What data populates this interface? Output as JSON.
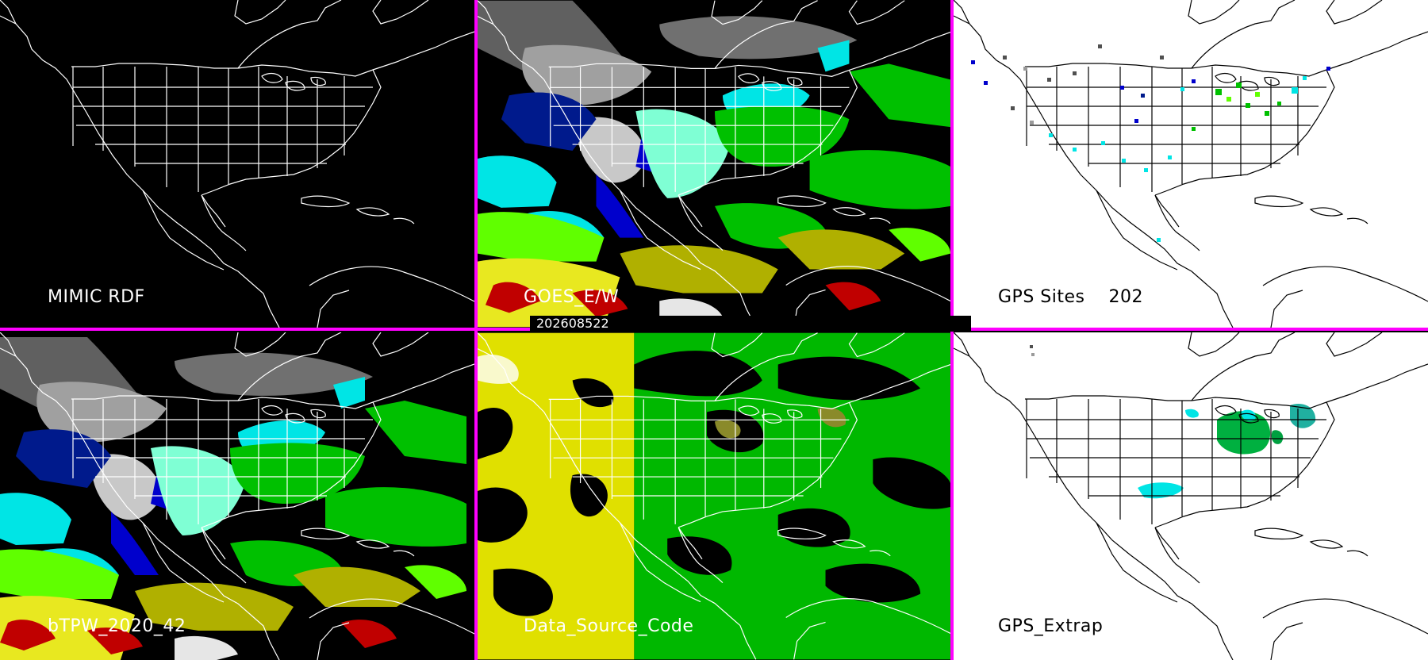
{
  "panels": [
    {
      "id": "mimic",
      "label": "MIMIC RDF",
      "background": "#000000",
      "label_color": "#ffffff",
      "outline_color": "#ffffff"
    },
    {
      "id": "goes",
      "label": "GOES_E/W",
      "background": "#000000",
      "label_color": "#ffffff",
      "outline_color": "#ffffff"
    },
    {
      "id": "gps_sites",
      "label": "GPS Sites",
      "count": "202",
      "background": "#ffffff",
      "label_color": "#000000",
      "outline_color": "#000000"
    },
    {
      "id": "btpw",
      "label": "bTPW_2020_42",
      "background": "#000000",
      "label_color": "#ffffff",
      "outline_color": "#ffffff"
    },
    {
      "id": "source_code",
      "label": "Data_Source_Code",
      "background": "#000000",
      "label_color": "#ffffff",
      "outline_color": "#ffffff"
    },
    {
      "id": "gps_extrap",
      "label": "GPS_Extrap",
      "background": "#ffffff",
      "label_color": "#000000",
      "outline_color": "#000000"
    }
  ],
  "timestamp": "202608522",
  "colors": {
    "divider": "#ff00ff",
    "tpw_scale": [
      "#505050",
      "#9a9a9a",
      "#d0d0d0",
      "#001a8c",
      "#0000cc",
      "#00e5e5",
      "#7fffd4",
      "#00c000",
      "#60ff00",
      "#b0b000",
      "#e8e820",
      "#c00000",
      "#ffffff"
    ],
    "source_yellow": "#e0e000",
    "source_green": "#00b800",
    "source_olive": "#8a8a2a"
  }
}
